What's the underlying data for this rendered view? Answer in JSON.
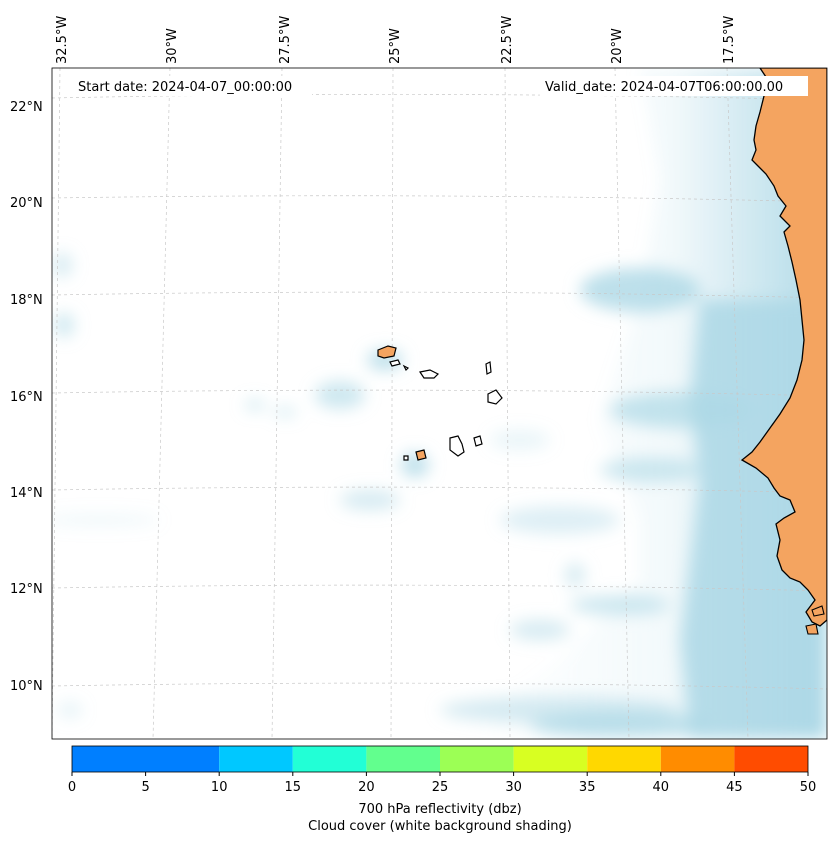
{
  "map": {
    "start_date": "Start date: 2024-04-07_00:00:00",
    "valid_date": "Valid_date: 2024-04-07T06:00:00.00",
    "lon_labels": [
      "32.5°W",
      "30°W",
      "27.5°W",
      "25°W",
      "22.5°W",
      "20°W",
      "17.5°W"
    ],
    "lat_labels": [
      "22°N",
      "20°N",
      "18°N",
      "16°N",
      "14°N",
      "12°N",
      "10°N"
    ],
    "land_color": "#f4a460",
    "cloud_color": "#add8e6"
  },
  "colorbar": {
    "ticks": [
      "0",
      "5",
      "10",
      "15",
      "20",
      "25",
      "30",
      "35",
      "40",
      "45",
      "50"
    ],
    "colors": [
      "#007fff",
      "#00c8ff",
      "#22ffd6",
      "#62ff8e",
      "#9cff55",
      "#d8ff22",
      "#ffd800",
      "#ff8c00",
      "#ff4c00"
    ],
    "label_line1": "700 hPa reflectivity (dbz)",
    "label_line2": "Cloud cover (white background shading)"
  }
}
